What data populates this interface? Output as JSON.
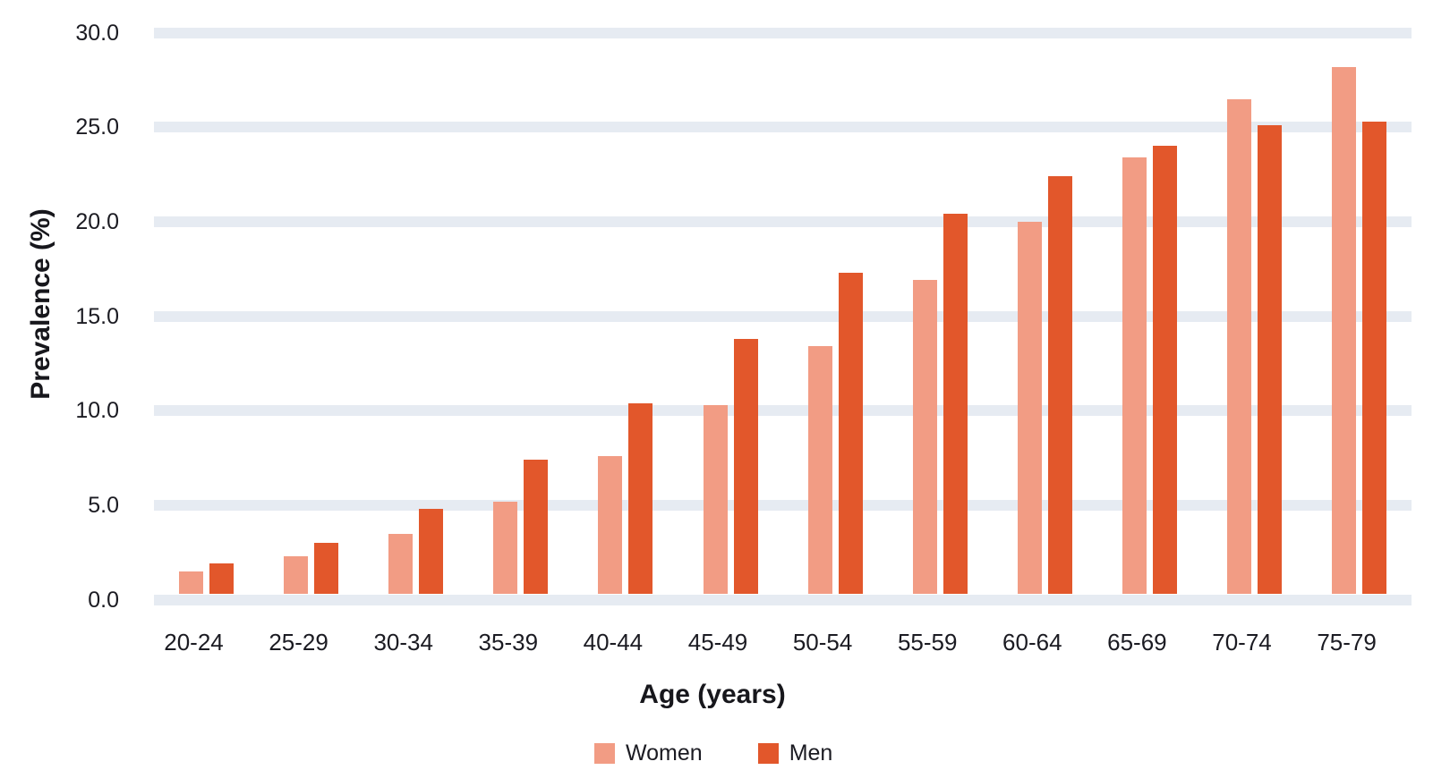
{
  "chart_data": {
    "type": "bar",
    "title": "",
    "categories": [
      "20-24",
      "25-29",
      "30-34",
      "35-39",
      "40-44",
      "45-49",
      "50-54",
      "55-59",
      "60-64",
      "65-69",
      "70-74",
      "75-79"
    ],
    "series": [
      {
        "name": "Women",
        "color": "#F29C84",
        "values": [
          1.5,
          2.3,
          3.5,
          5.2,
          7.6,
          10.3,
          13.4,
          16.9,
          20.0,
          23.4,
          26.5,
          28.2
        ]
      },
      {
        "name": "Men",
        "color": "#E2572B",
        "values": [
          1.9,
          3.0,
          4.8,
          7.4,
          10.4,
          13.8,
          17.3,
          20.4,
          22.4,
          24.0,
          25.1,
          25.3
        ]
      }
    ],
    "xlabel": "Age (years)",
    "ylabel": "Prevalence (%)",
    "ylim": [
      0,
      30
    ],
    "ytick_step": 5,
    "ytick_labels": [
      "0.0",
      "5.0",
      "10.0",
      "15.0",
      "20.0",
      "25.0",
      "30.0"
    ],
    "grid": "horizontal-bands",
    "legend_position": "bottom"
  },
  "style": {
    "grid_color": "#E6EBF2",
    "text_color": "#1B1B22",
    "background": "#FFFFFF"
  }
}
